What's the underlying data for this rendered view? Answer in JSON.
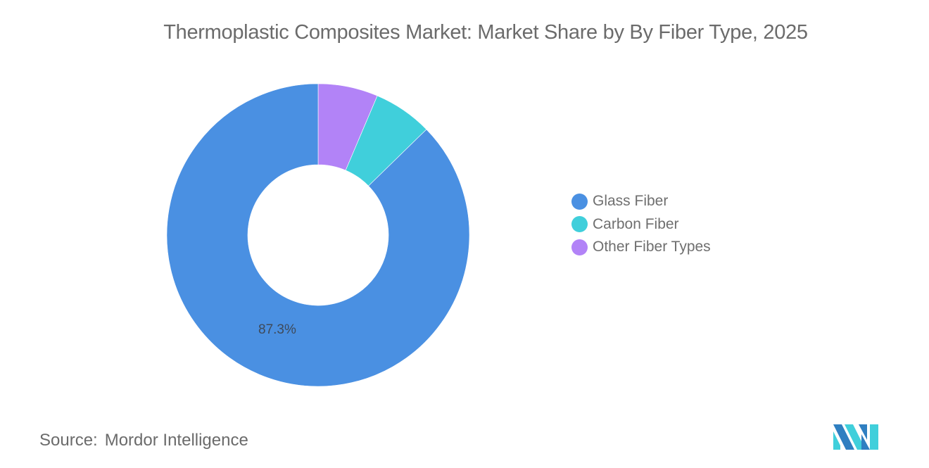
{
  "title": "Thermoplastic Composites Market: Market Share by By Fiber Type, 2025",
  "legend": [
    {
      "label": "Glass Fiber",
      "color": "#4a90e2"
    },
    {
      "label": "Carbon Fiber",
      "color": "#40cfdb"
    },
    {
      "label": "Other Fiber Types",
      "color": "#b283f7"
    }
  ],
  "data_label": "87.3%",
  "source": {
    "key": "Source:",
    "value": "Mordor Intelligence"
  },
  "chart_data": {
    "type": "pie",
    "subtype": "donut",
    "title": "Thermoplastic Composites Market: Market Share by By Fiber Type, 2025",
    "categories": [
      "Glass Fiber",
      "Carbon Fiber",
      "Other Fiber Types"
    ],
    "values": [
      87.3,
      6.3,
      6.4
    ],
    "colors": [
      "#4a90e2",
      "#40cfdb",
      "#b283f7"
    ],
    "labels_shown": {
      "Glass Fiber": "87.3%"
    },
    "legend_position": "right",
    "start_angle_deg": 0,
    "direction": "clockwise from top, reverse legend order (Other, Carbon, Glass)"
  }
}
